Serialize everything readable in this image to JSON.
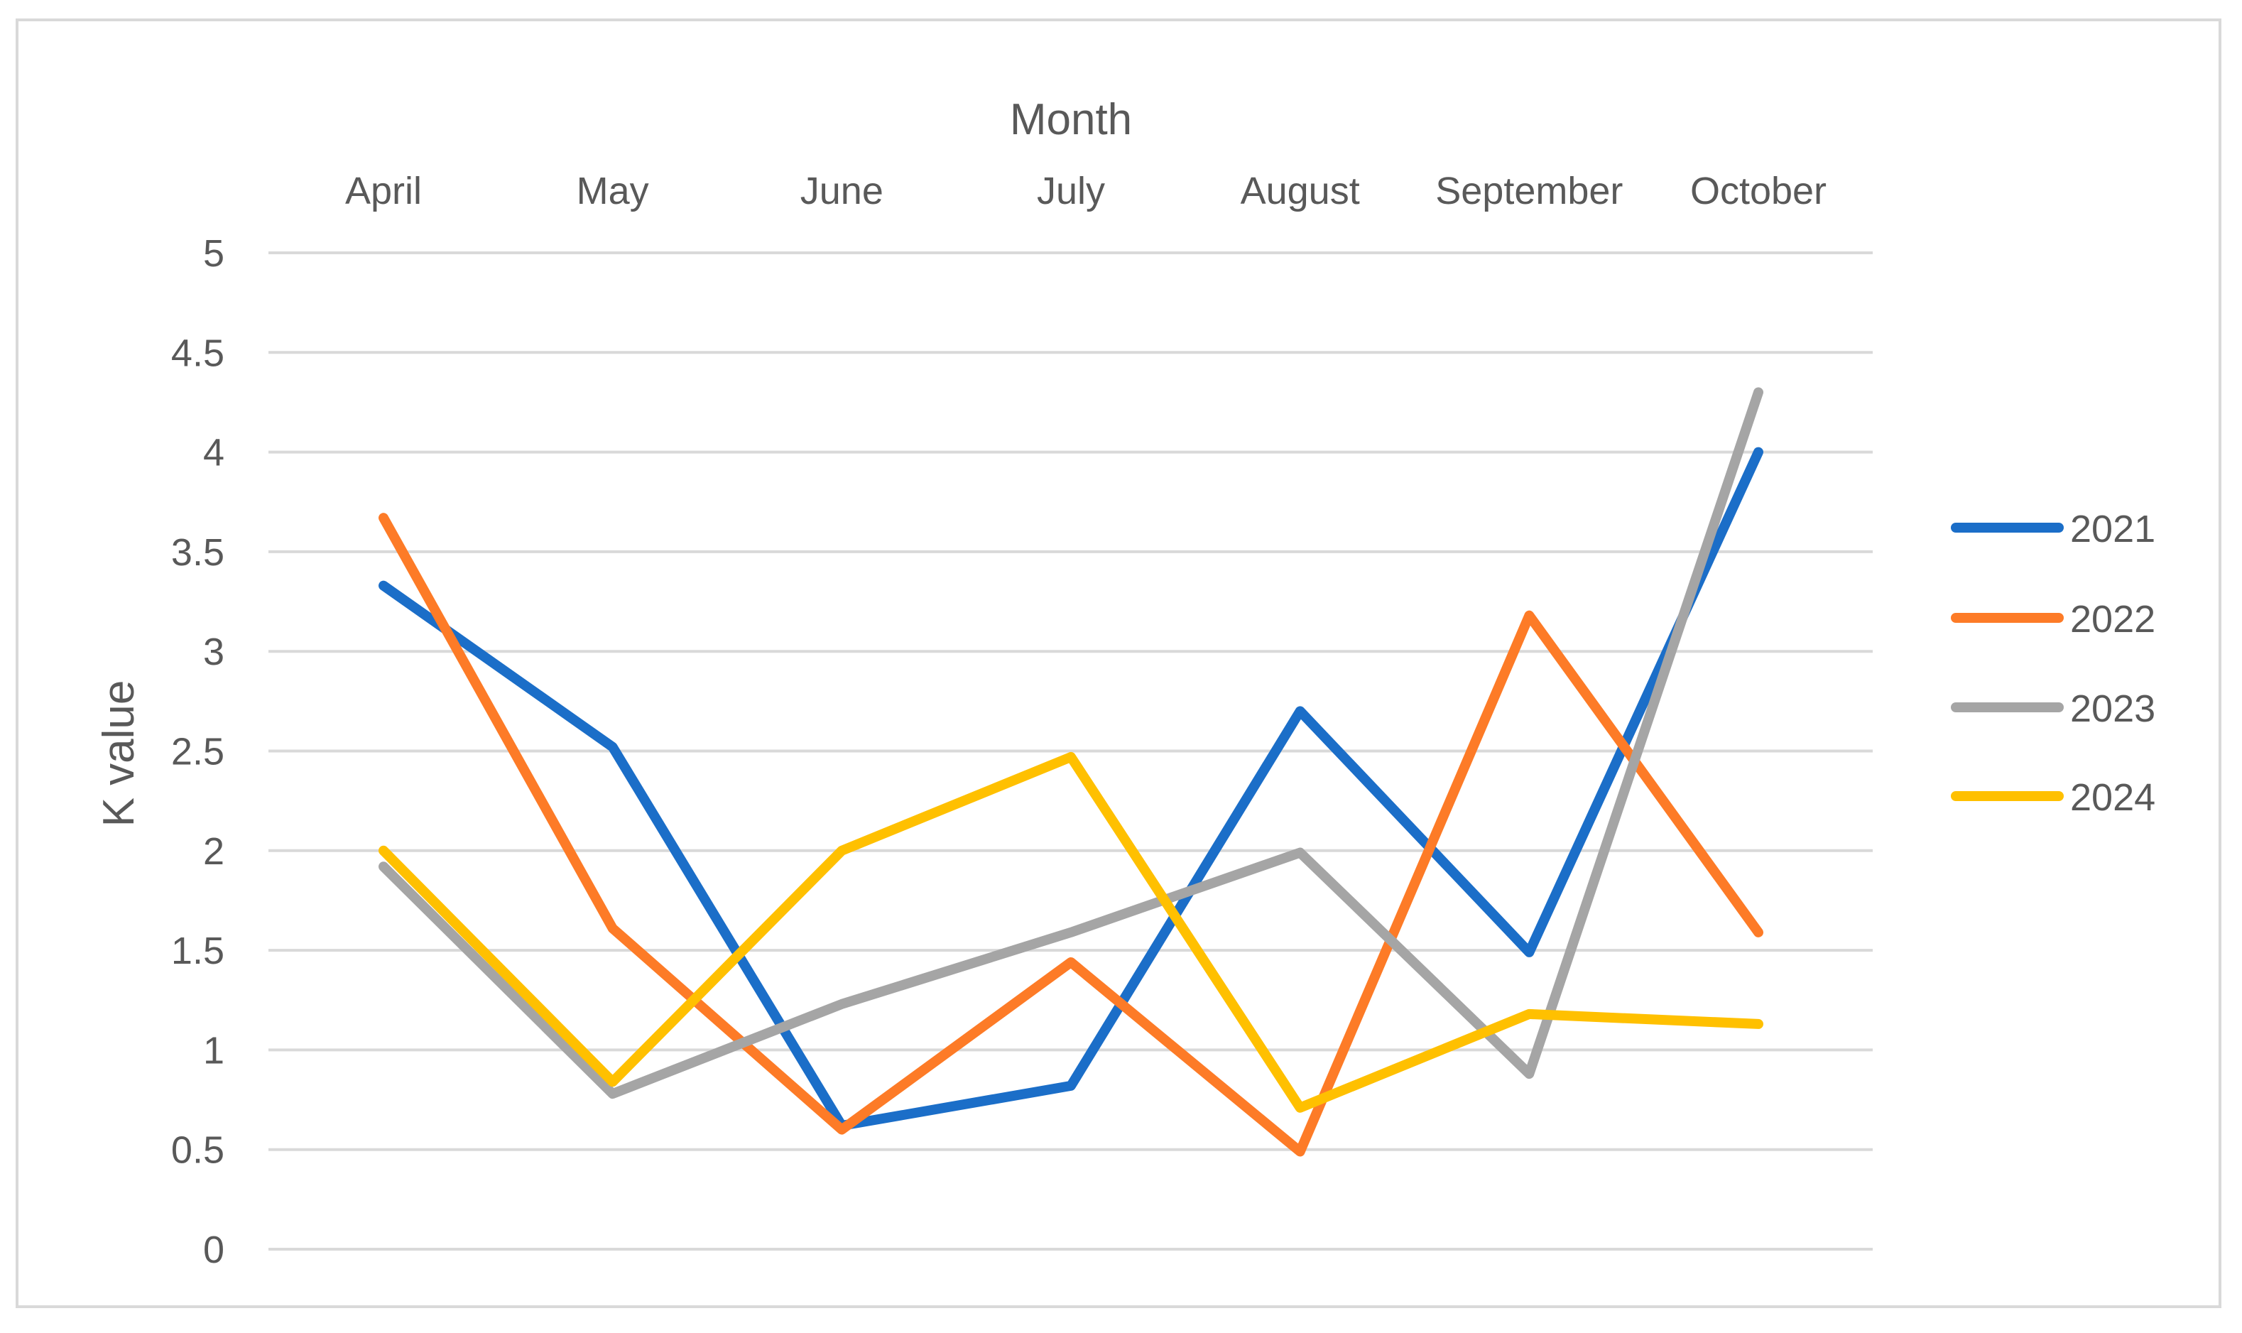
{
  "chart_data": {
    "type": "line",
    "title": "",
    "xlabel": "Month",
    "ylabel": "K value",
    "x_axis_position": "top",
    "categories": [
      "April",
      "May",
      "June",
      "July",
      "August",
      "September",
      "October"
    ],
    "ylim": [
      0,
      5
    ],
    "yticks": [
      "0",
      "0.5",
      "1",
      "1.5",
      "2",
      "2.5",
      "3",
      "3.5",
      "4",
      "4.5",
      "5"
    ],
    "ytick_values": [
      0,
      0.5,
      1,
      1.5,
      2,
      2.5,
      3,
      3.5,
      4,
      4.5,
      5
    ],
    "grid": "horizontal",
    "legend_position": "right",
    "series": [
      {
        "name": "2021",
        "color": "#1B6EC8",
        "values": [
          3.33,
          2.52,
          0.62,
          0.82,
          2.7,
          1.49,
          4.0
        ]
      },
      {
        "name": "2022",
        "color": "#FD7B27",
        "values": [
          3.67,
          1.61,
          0.6,
          1.44,
          0.49,
          3.18,
          1.59
        ]
      },
      {
        "name": "2023",
        "color": "#A5A5A5",
        "values": [
          1.92,
          0.78,
          1.23,
          1.59,
          1.99,
          0.88,
          4.3
        ]
      },
      {
        "name": "2024",
        "color": "#FFC000",
        "values": [
          2.0,
          0.84,
          2.0,
          2.47,
          0.71,
          1.18,
          1.13
        ]
      }
    ]
  }
}
